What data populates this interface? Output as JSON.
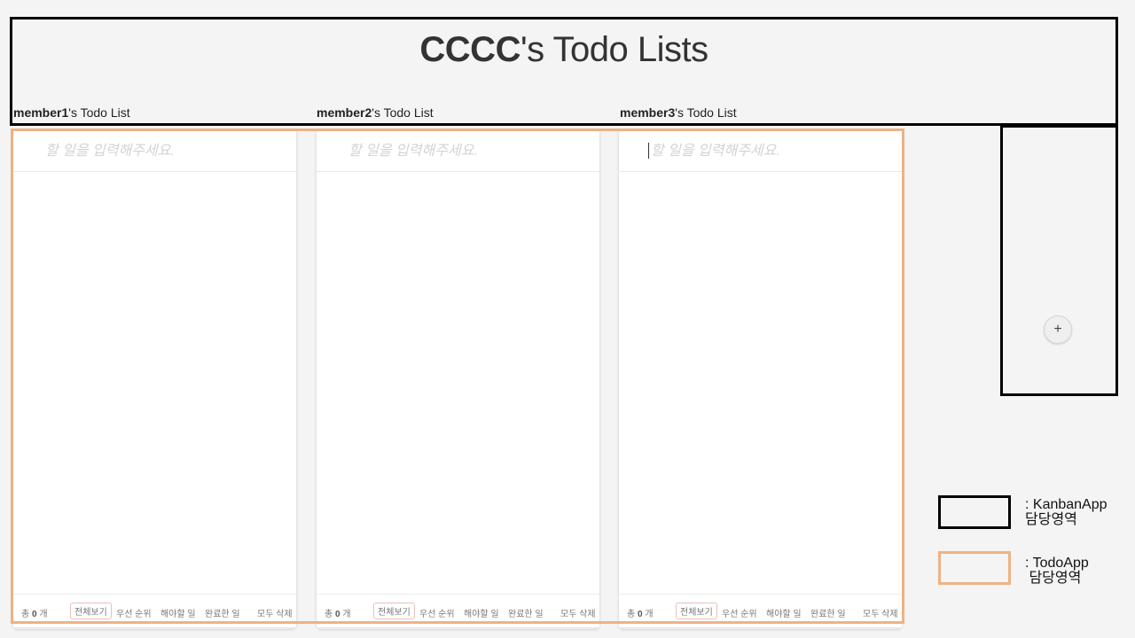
{
  "board": {
    "owner": "CCCC",
    "title_suffix": "'s Todo Lists"
  },
  "columns": [
    {
      "member": "member1",
      "label_suffix": "'s Todo List",
      "input_placeholder": "할 일을 입력해주세요.",
      "footer": {
        "count_prefix": "총",
        "count_value": "0",
        "count_suffix": "개",
        "filter_all": "전체보기",
        "filter_priority": "우선 순위",
        "filter_todo": "해야할 일",
        "filter_done": "완료한 일",
        "delete_all": "모두 삭제"
      }
    },
    {
      "member": "member2",
      "label_suffix": "'s Todo List",
      "input_placeholder": "할 일을 입력해주세요.",
      "footer": {
        "count_prefix": "총",
        "count_value": "0",
        "count_suffix": "개",
        "filter_all": "전체보기",
        "filter_priority": "우선 순위",
        "filter_todo": "해야할 일",
        "filter_done": "완료한 일",
        "delete_all": "모두 삭제"
      }
    },
    {
      "member": "member3",
      "label_suffix": "'s Todo List",
      "input_placeholder": "할 일을 입력해주세요.",
      "footer": {
        "count_prefix": "총",
        "count_value": "0",
        "count_suffix": "개",
        "filter_all": "전체보기",
        "filter_priority": "우선 순위",
        "filter_todo": "해야할 일",
        "filter_done": "완료한 일",
        "delete_all": "모두 삭제"
      }
    }
  ],
  "add_button_label": "+",
  "legend": [
    {
      "line1": ": KanbanApp",
      "line2": "담당영역",
      "color": "#000000"
    },
    {
      "line1": ": TodoApp",
      "line2": " 담당영역",
      "color": "#eeb283"
    }
  ]
}
